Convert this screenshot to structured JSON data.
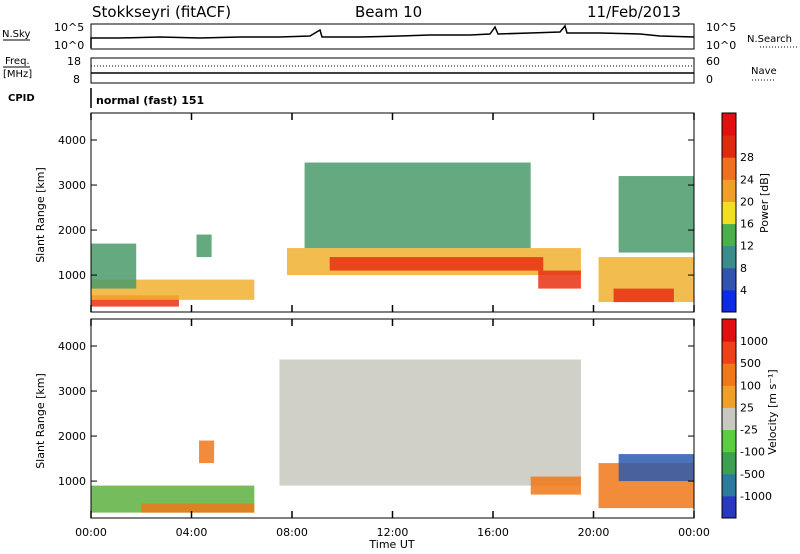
{
  "header": {
    "station": "Stokkseyri (fitACF)",
    "beam": "Beam 10",
    "date": "11/Feb/2013"
  },
  "top_panels": {
    "nsky_label": "N.Sky",
    "nsky_tick_hi": "10^5",
    "nsky_tick_lo": "10^0",
    "nsearch_label": "N.Search",
    "nsearch_tick_hi": "10^5",
    "nsearch_tick_lo": "10^0",
    "freq_label": "Freq.",
    "freq_unit": "[MHz]",
    "freq_tick_hi": "18",
    "freq_tick_lo": "8",
    "nave_label": "Nave",
    "nave_tick_hi": "60",
    "nave_tick_lo": "0",
    "cpid_label": "CPID",
    "cpid_value": "normal (fast) 151"
  },
  "chart_data": [
    {
      "type": "heatmap",
      "name": "power",
      "xlabel": "",
      "ylabel": "Slant Range [km]",
      "x_ticks": [
        "00:00",
        "04:00",
        "08:00",
        "12:00",
        "16:00",
        "20:00",
        "00:00"
      ],
      "xlim_hours": [
        0,
        24
      ],
      "y_ticks": [
        "1000",
        "2000",
        "3000",
        "4000"
      ],
      "ylim_km": [
        180,
        4600
      ],
      "colorbar": {
        "label": "Power [dB]",
        "ticks": [
          "4",
          "8",
          "12",
          "16",
          "20",
          "24",
          "28"
        ],
        "colors": [
          "#0a2be8",
          "#2f55b0",
          "#3c8c8c",
          "#4bb04b",
          "#f0e020",
          "#f0a028",
          "#f07020",
          "#e02a10",
          "#e01010"
        ]
      },
      "regions": [
        {
          "t0": 0.0,
          "t1": 3.5,
          "r0": 300,
          "r1": 550,
          "level": "high"
        },
        {
          "t0": 0.0,
          "t1": 6.5,
          "r0": 450,
          "r1": 900,
          "level": "mid"
        },
        {
          "t0": 0.0,
          "t1": 1.8,
          "r0": 700,
          "r1": 1700,
          "level": "low"
        },
        {
          "t0": 4.2,
          "t1": 4.8,
          "r0": 1400,
          "r1": 1900,
          "level": "low"
        },
        {
          "t0": 7.8,
          "t1": 19.5,
          "r0": 1000,
          "r1": 1600,
          "level": "mid"
        },
        {
          "t0": 9.5,
          "t1": 18.0,
          "r0": 1100,
          "r1": 1400,
          "level": "high"
        },
        {
          "t0": 8.5,
          "t1": 17.5,
          "r0": 1600,
          "r1": 3500,
          "level": "low"
        },
        {
          "t0": 17.8,
          "t1": 19.5,
          "r0": 700,
          "r1": 1100,
          "level": "high"
        },
        {
          "t0": 20.2,
          "t1": 24.0,
          "r0": 400,
          "r1": 1400,
          "level": "mid"
        },
        {
          "t0": 20.8,
          "t1": 23.2,
          "r0": 400,
          "r1": 700,
          "level": "high"
        },
        {
          "t0": 21.0,
          "t1": 24.0,
          "r0": 1500,
          "r1": 3200,
          "level": "low"
        }
      ]
    },
    {
      "type": "heatmap",
      "name": "velocity",
      "xlabel": "Time UT",
      "ylabel": "Slant Range [km]",
      "x_ticks": [
        "00:00",
        "04:00",
        "08:00",
        "12:00",
        "16:00",
        "20:00",
        "00:00"
      ],
      "xlim_hours": [
        0,
        24
      ],
      "y_ticks": [
        "1000",
        "2000",
        "3000",
        "4000"
      ],
      "ylim_km": [
        180,
        4600
      ],
      "colorbar": {
        "label": "Velocity [m s⁻¹]",
        "ticks": [
          "1000",
          "500",
          "100",
          "25",
          "-25",
          "-100",
          "-500",
          "-1000"
        ],
        "colors": [
          "#2838c0",
          "#2c7aa0",
          "#3ca050",
          "#5ccc40",
          "#c8c8c0",
          "#f0a028",
          "#f07818",
          "#f04018",
          "#e01010"
        ]
      },
      "regions": [
        {
          "t0": 0.0,
          "t1": 6.5,
          "r0": 300,
          "r1": 900,
          "level": "green"
        },
        {
          "t0": 2.0,
          "t1": 6.5,
          "r0": 300,
          "r1": 500,
          "level": "orange"
        },
        {
          "t0": 4.3,
          "t1": 4.9,
          "r0": 1400,
          "r1": 1900,
          "level": "orange"
        },
        {
          "t0": 7.5,
          "t1": 19.5,
          "r0": 900,
          "r1": 3700,
          "level": "grey"
        },
        {
          "t0": 17.5,
          "t1": 19.5,
          "r0": 700,
          "r1": 1100,
          "level": "orange"
        },
        {
          "t0": 20.2,
          "t1": 24.0,
          "r0": 400,
          "r1": 1400,
          "level": "orange"
        },
        {
          "t0": 21.0,
          "t1": 24.0,
          "r0": 1000,
          "r1": 1600,
          "level": "blue"
        }
      ]
    }
  ]
}
